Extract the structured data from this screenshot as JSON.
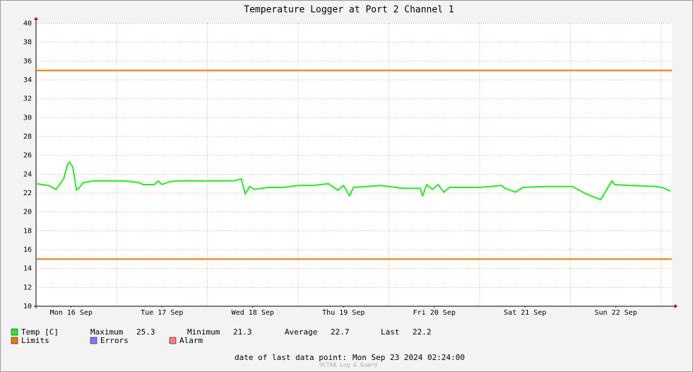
{
  "chart_data": {
    "type": "line",
    "title": "Temperature Logger at Port 2 Channel 1",
    "xlim": [
      2.7,
      170.8
    ],
    "xticks": [
      {
        "value": 12,
        "label": "Mon 16 Sep"
      },
      {
        "value": 36,
        "label": "Tue 17 Sep"
      },
      {
        "value": 60,
        "label": "Wed 18 Sep"
      },
      {
        "value": 84,
        "label": "Thu 19 Sep"
      },
      {
        "value": 108,
        "label": "Fri 20 Sep"
      },
      {
        "value": 132,
        "label": "Sat 21 Sep"
      },
      {
        "value": 156,
        "label": "Sun 22 Sep"
      }
    ],
    "xgrid": [
      24,
      48,
      72,
      96,
      120,
      144,
      168
    ],
    "ylim": [
      10,
      40
    ],
    "yticks": [
      10,
      12,
      14,
      16,
      18,
      20,
      22,
      24,
      26,
      28,
      30,
      32,
      34,
      36,
      38,
      40
    ],
    "grid": true,
    "series": [
      {
        "name": "Temp [C]",
        "color": "#22ee22",
        "x": [
          2.7,
          4.4,
          6,
          8,
          10,
          11,
          11.5,
          12.4,
          13.4,
          14,
          15.2,
          18,
          22,
          26,
          30,
          31,
          34,
          35,
          36,
          38,
          40,
          45,
          50,
          55,
          57,
          58,
          59.2,
          60.4,
          64,
          68,
          72,
          76,
          80,
          82.5,
          84,
          85.6,
          86.6,
          94,
          99.6,
          104.3,
          104.9,
          106,
          107.5,
          109,
          110.5,
          112,
          120,
          125.8,
          126.7,
          129.5,
          131.4,
          138,
          144.5,
          148.2,
          152,
          155,
          155.7,
          160,
          166.4,
          168.3,
          170.4
        ],
        "values": [
          23.0,
          22.9,
          22.8,
          22.4,
          23.5,
          25.0,
          25.3,
          24.8,
          22.3,
          22.5,
          23.1,
          23.3,
          23.3,
          23.3,
          23.1,
          22.9,
          22.9,
          23.3,
          22.9,
          23.2,
          23.3,
          23.3,
          23.3,
          23.3,
          23.5,
          21.9,
          22.7,
          22.4,
          22.6,
          22.6,
          22.8,
          22.8,
          23.0,
          22.3,
          22.8,
          21.7,
          22.6,
          22.8,
          22.5,
          22.5,
          21.7,
          22.9,
          22.4,
          22.9,
          22.1,
          22.6,
          22.6,
          22.8,
          22.5,
          22.1,
          22.6,
          22.7,
          22.7,
          21.9,
          21.3,
          23.3,
          22.9,
          22.8,
          22.7,
          22.6,
          22.2
        ]
      }
    ],
    "limits": {
      "name": "Limits",
      "color": "#ee7700",
      "values": [
        35,
        15
      ]
    },
    "legend_only": [
      {
        "name": "Errors",
        "color": "#7b7bff"
      },
      {
        "name": "Alarm",
        "color": "#ff7b7b"
      }
    ],
    "stats": [
      {
        "label": "Maximum",
        "value": 25.3
      },
      {
        "label": "Minimum",
        "value": 21.3
      },
      {
        "label": "Average",
        "value": 22.7
      },
      {
        "label": "Last",
        "value": 22.2
      }
    ],
    "footer_label": "date of last data point:",
    "footer_date": "Mon Sep 23 2024 02:24:00",
    "watermark": "OCTAA Log & Guard"
  }
}
